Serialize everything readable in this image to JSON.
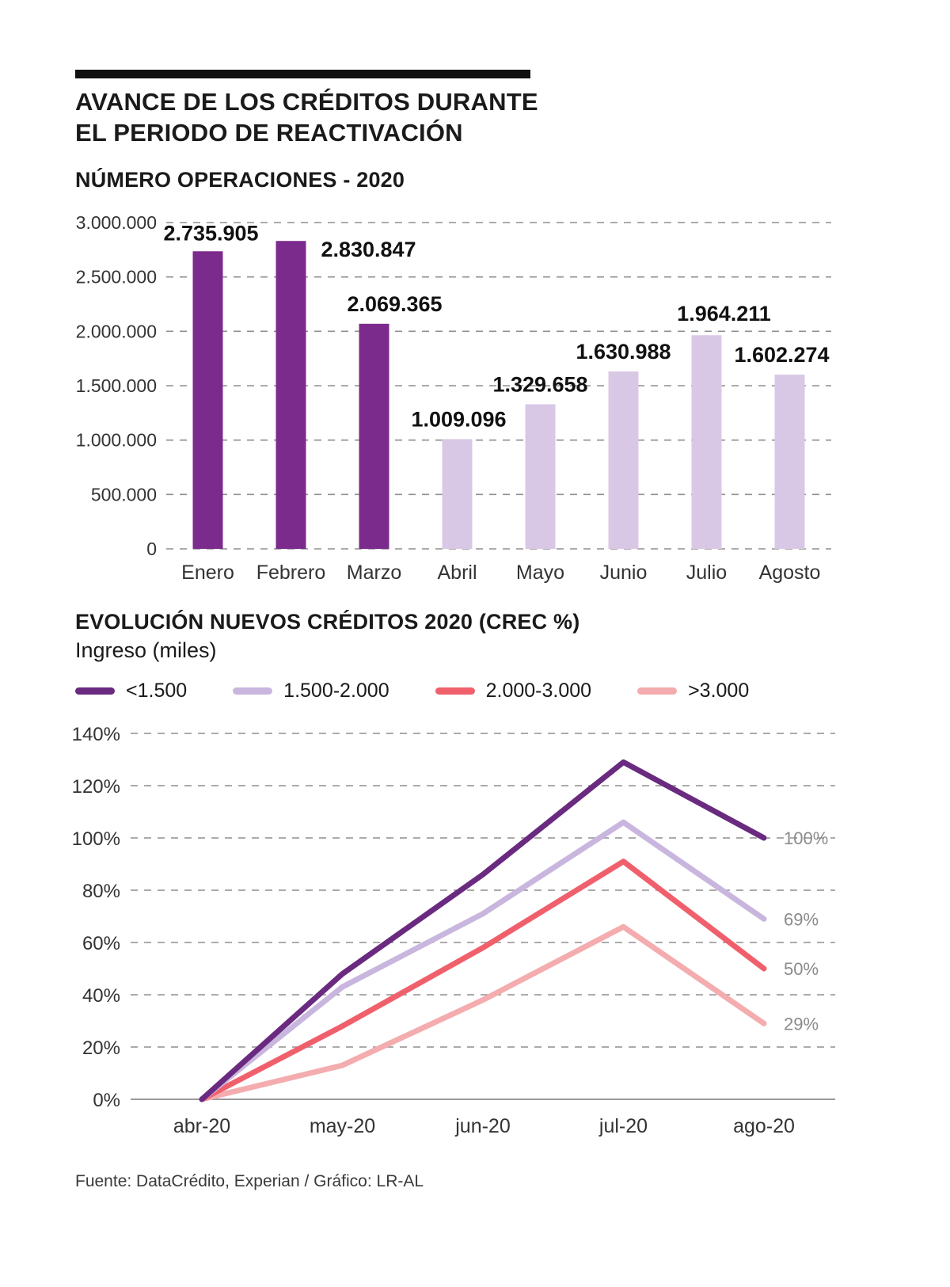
{
  "header": {
    "title_line1": "AVANCE DE LOS CRÉDITOS DURANTE",
    "title_line2": "EL PERIODO DE REACTIVACIÓN"
  },
  "footer": {
    "source": "Fuente: DataCrédito, Experian / Gráfico: LR-AL"
  },
  "chart_data": [
    {
      "type": "bar",
      "title": "NÚMERO OPERACIONES - 2020",
      "categories": [
        "Enero",
        "Febrero",
        "Marzo",
        "Abril",
        "Mayo",
        "Junio",
        "Julio",
        "Agosto"
      ],
      "values": [
        2735905,
        2830847,
        2069365,
        1009096,
        1329658,
        1630988,
        1964211,
        1602274
      ],
      "value_labels": [
        "2.735.905",
        "2.830.847",
        "2.069.365",
        "1.009.096",
        "1.329.658",
        "1.630.988",
        "1.964.211",
        "1.602.274"
      ],
      "bar_colors": [
        "#7B2B8B",
        "#7B2B8B",
        "#7B2B8B",
        "#D9C8E5",
        "#D9C8E5",
        "#D9C8E5",
        "#D9C8E5",
        "#D9C8E5"
      ],
      "ylim": [
        0,
        3000000
      ],
      "ytick_step": 500000,
      "ytick_labels": [
        "0",
        "500.000",
        "1.000.000",
        "1.500.000",
        "2.000.000",
        "2.500.000",
        "3.000.000"
      ],
      "grid": "dashed-horizontal",
      "legend": "none"
    },
    {
      "type": "line",
      "title": "EVOLUCIÓN NUEVOS CRÉDITOS 2020 (CREC %)",
      "subtitle": "Ingreso (miles)",
      "x": [
        "abr-20",
        "may-20",
        "jun-20",
        "jul-20",
        "ago-20"
      ],
      "series": [
        {
          "name": "<1.500",
          "color": "#6A2A80",
          "values": [
            0,
            48,
            86,
            129,
            100
          ],
          "end_label": "100%"
        },
        {
          "name": "1.500-2.000",
          "color": "#C9B6DE",
          "values": [
            0,
            43,
            71,
            106,
            69
          ],
          "end_label": "69%"
        },
        {
          "name": "2.000-3.000",
          "color": "#F0606C",
          "values": [
            0,
            28,
            58,
            91,
            50
          ],
          "end_label": "50%"
        },
        {
          "name": ">3.000",
          "color": "#F4ACAE",
          "values": [
            0,
            13,
            38,
            66,
            29
          ],
          "end_label": "29%"
        }
      ],
      "ylim": [
        0,
        140
      ],
      "ytick_step": 20,
      "ytick_labels": [
        "0%",
        "20%",
        "40%",
        "60%",
        "80%",
        "100%",
        "120%",
        "140%"
      ],
      "grid": "dashed-horizontal",
      "legend_position": "top"
    }
  ]
}
